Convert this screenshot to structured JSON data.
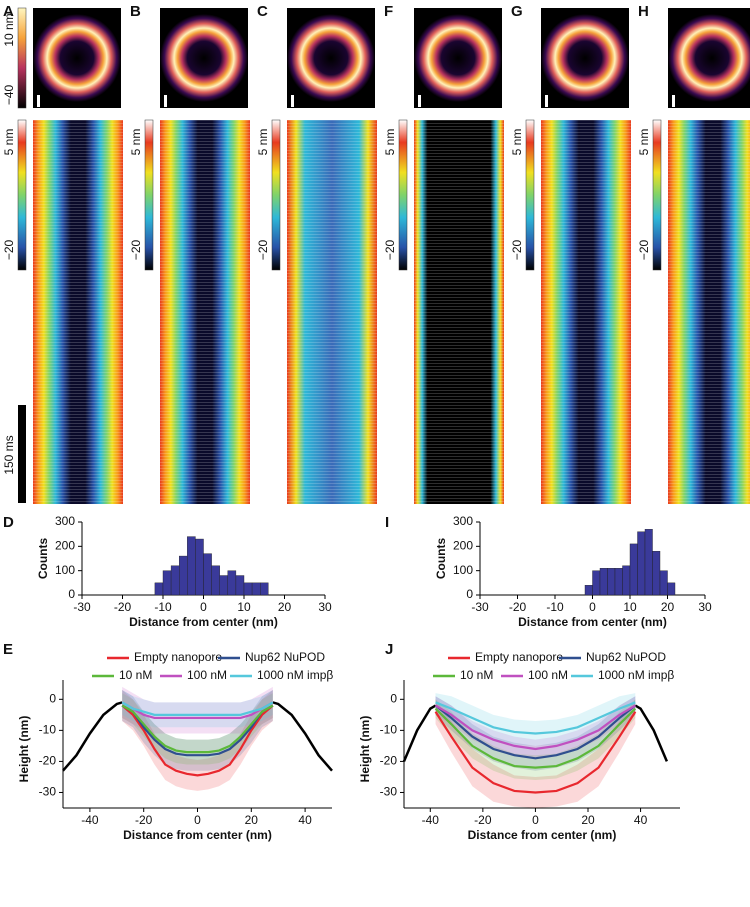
{
  "panels": [
    {
      "label": "A",
      "kymo_scale": [
        "5 nm",
        "−20"
      ]
    },
    {
      "label": "B",
      "kymo_scale": [
        "5 nm",
        "−20"
      ]
    },
    {
      "label": "C",
      "kymo_scale": [
        "5 nm",
        "−20"
      ]
    },
    {
      "label": "F",
      "kymo_scale": [
        "5 nm",
        "−20"
      ]
    },
    {
      "label": "G",
      "kymo_scale": [
        "5 nm",
        "−20"
      ]
    },
    {
      "label": "H",
      "kymo_scale": [
        "5 nm",
        "−20"
      ]
    }
  ],
  "image_scale": [
    "10 nm",
    "−40"
  ],
  "time_scale": "150 ms",
  "chart_data": [
    {
      "type": "histogram",
      "label": "D",
      "xlabel": "Distance from center (nm)",
      "ylabel": "Counts",
      "color": "#3a3a9a",
      "bins": [
        -12,
        -10,
        -8,
        -6,
        -4,
        -2,
        0,
        2,
        4,
        6,
        8,
        10,
        12,
        14,
        16
      ],
      "values": [
        50,
        100,
        120,
        160,
        240,
        230,
        170,
        120,
        80,
        100,
        80,
        50,
        50,
        50
      ],
      "xlim": [
        -30,
        30
      ],
      "ylim": [
        0,
        300
      ],
      "xticks": [
        -30,
        -20,
        -10,
        0,
        10,
        20,
        30
      ],
      "yticks": [
        0,
        100,
        200,
        300
      ]
    },
    {
      "type": "histogram",
      "label": "I",
      "xlabel": "Distance from center (nm)",
      "ylabel": "Counts",
      "color": "#3a3a9a",
      "bins": [
        -2,
        0,
        2,
        4,
        6,
        8,
        10,
        12,
        14,
        16,
        18,
        20,
        22
      ],
      "values": [
        40,
        100,
        110,
        110,
        110,
        120,
        210,
        260,
        270,
        180,
        100,
        50
      ],
      "xlim": [
        -30,
        30
      ],
      "ylim": [
        0,
        300
      ],
      "xticks": [
        -30,
        -20,
        -10,
        0,
        10,
        20,
        30
      ],
      "yticks": [
        0,
        100,
        200,
        300
      ]
    },
    {
      "type": "line",
      "label": "E",
      "xlabel": "Distance from center (nm)",
      "ylabel": "Height (nm)",
      "x": [
        -28,
        -24,
        -20,
        -16,
        -12,
        -8,
        -4,
        0,
        4,
        8,
        12,
        16,
        20,
        24,
        28
      ],
      "series": [
        {
          "name": "Empty nanopore",
          "color": "#e8282e",
          "values": [
            -2,
            -5,
            -10,
            -16,
            -21,
            -23,
            -24,
            -24.5,
            -24,
            -23,
            -21,
            -16,
            -10,
            -5,
            -2
          ],
          "error": [
            5,
            5,
            5,
            5,
            5,
            5,
            5,
            5,
            5,
            5,
            5,
            5,
            5,
            5,
            5
          ]
        },
        {
          "name": "Nup62 NuPOD",
          "color": "#2f4f8f",
          "values": [
            -2,
            -4,
            -9,
            -13,
            -16,
            -17.5,
            -18,
            -18,
            -18,
            -17.5,
            -16,
            -13,
            -9,
            -4,
            -2
          ],
          "error": [
            5,
            5,
            5,
            5,
            5,
            5,
            5,
            5,
            5,
            5,
            5,
            5,
            5,
            5,
            5
          ]
        },
        {
          "name": "10 nM",
          "color": "#5cb83a",
          "values": [
            -2,
            -4,
            -8,
            -12,
            -15,
            -16.5,
            -17,
            -17,
            -17,
            -16.5,
            -15,
            -12,
            -8,
            -4,
            -2
          ],
          "error": [
            4,
            4,
            4,
            4,
            4,
            4,
            4,
            4,
            4,
            4,
            4,
            4,
            4,
            4,
            4
          ]
        },
        {
          "name": "100 nM",
          "color": "#c050c0",
          "values": [
            -1,
            -3,
            -5,
            -6,
            -6,
            -6,
            -6,
            -6,
            -6,
            -6,
            -6,
            -6,
            -5,
            -3,
            -1
          ],
          "error": [
            5,
            5,
            5,
            5,
            5,
            5,
            5,
            5,
            5,
            5,
            5,
            5,
            5,
            5,
            5
          ]
        },
        {
          "name": "1000 nM impβ",
          "color": "#55c8dc",
          "values": [
            -1,
            -3,
            -4,
            -5,
            -5,
            -5,
            -5,
            -5,
            -5,
            -5,
            -5,
            -5,
            -4,
            -3,
            -1
          ],
          "error": [
            4,
            4,
            4,
            4,
            4,
            4,
            4,
            4,
            4,
            4,
            4,
            4,
            4,
            4,
            4
          ]
        }
      ],
      "outline": {
        "color": "#000000",
        "x": [
          -50,
          -45,
          -40,
          -35,
          -30,
          -28,
          0,
          28,
          30,
          35,
          40,
          45,
          50
        ],
        "values": [
          -23,
          -18,
          -11,
          -5,
          -1.5,
          -1,
          null,
          -1,
          -1.5,
          -5,
          -11,
          -18,
          -23
        ]
      },
      "xlim": [
        -50,
        50
      ],
      "ylim": [
        -35,
        3
      ],
      "xticks": [
        -40,
        -20,
        0,
        20,
        40
      ],
      "yticks": [
        0,
        -10,
        -20,
        -30
      ]
    },
    {
      "type": "line",
      "label": "J",
      "xlabel": "Distance from center (nm)",
      "ylabel": "Height (nm)",
      "x": [
        -38,
        -32,
        -24,
        -16,
        -8,
        0,
        8,
        16,
        24,
        32,
        38
      ],
      "series": [
        {
          "name": "Empty nanopore",
          "color": "#e8282e",
          "values": [
            -4,
            -12,
            -22,
            -27,
            -29.5,
            -30,
            -29.5,
            -27,
            -22,
            -12,
            -4
          ],
          "error": [
            4,
            5,
            6,
            6,
            5,
            5,
            5,
            6,
            6,
            5,
            4
          ]
        },
        {
          "name": "Nup62 NuPOD",
          "color": "#2f4f8f",
          "values": [
            -2,
            -6,
            -12,
            -16,
            -18,
            -19,
            -18,
            -16,
            -12,
            -6,
            -2
          ],
          "error": [
            3,
            4,
            4,
            4,
            4,
            4,
            4,
            4,
            4,
            4,
            3
          ]
        },
        {
          "name": "10 nM",
          "color": "#5cb83a",
          "values": [
            -3,
            -8,
            -15,
            -19,
            -21.5,
            -22,
            -21.5,
            -19,
            -15,
            -8,
            -3
          ],
          "error": [
            3,
            4,
            4,
            4,
            4,
            4,
            4,
            4,
            4,
            4,
            3
          ]
        },
        {
          "name": "100 nM",
          "color": "#c050c0",
          "values": [
            -2,
            -5,
            -10,
            -13,
            -15,
            -16,
            -15,
            -13,
            -10,
            -5,
            -2
          ],
          "error": [
            3,
            3,
            3,
            3,
            3,
            3,
            3,
            3,
            3,
            3,
            3
          ]
        },
        {
          "name": "1000 nM impβ",
          "color": "#55c8dc",
          "values": [
            -1,
            -3,
            -6,
            -9,
            -10.5,
            -11,
            -10.5,
            -9,
            -6,
            -3,
            -1
          ],
          "error": [
            3,
            4,
            4,
            4,
            4,
            4,
            4,
            4,
            4,
            4,
            3
          ]
        }
      ],
      "outline": {
        "color": "#000000",
        "x": [
          -50,
          -45,
          -40,
          -38,
          0,
          38,
          40,
          45,
          50
        ],
        "values": [
          -20,
          -10,
          -3,
          -2,
          null,
          -2,
          -3,
          -10,
          -20
        ]
      },
      "xlim": [
        -50,
        55
      ],
      "ylim": [
        -35,
        3
      ],
      "xticks": [
        -40,
        -20,
        0,
        20,
        40
      ],
      "yticks": [
        0,
        -10,
        -20,
        -30
      ]
    }
  ]
}
